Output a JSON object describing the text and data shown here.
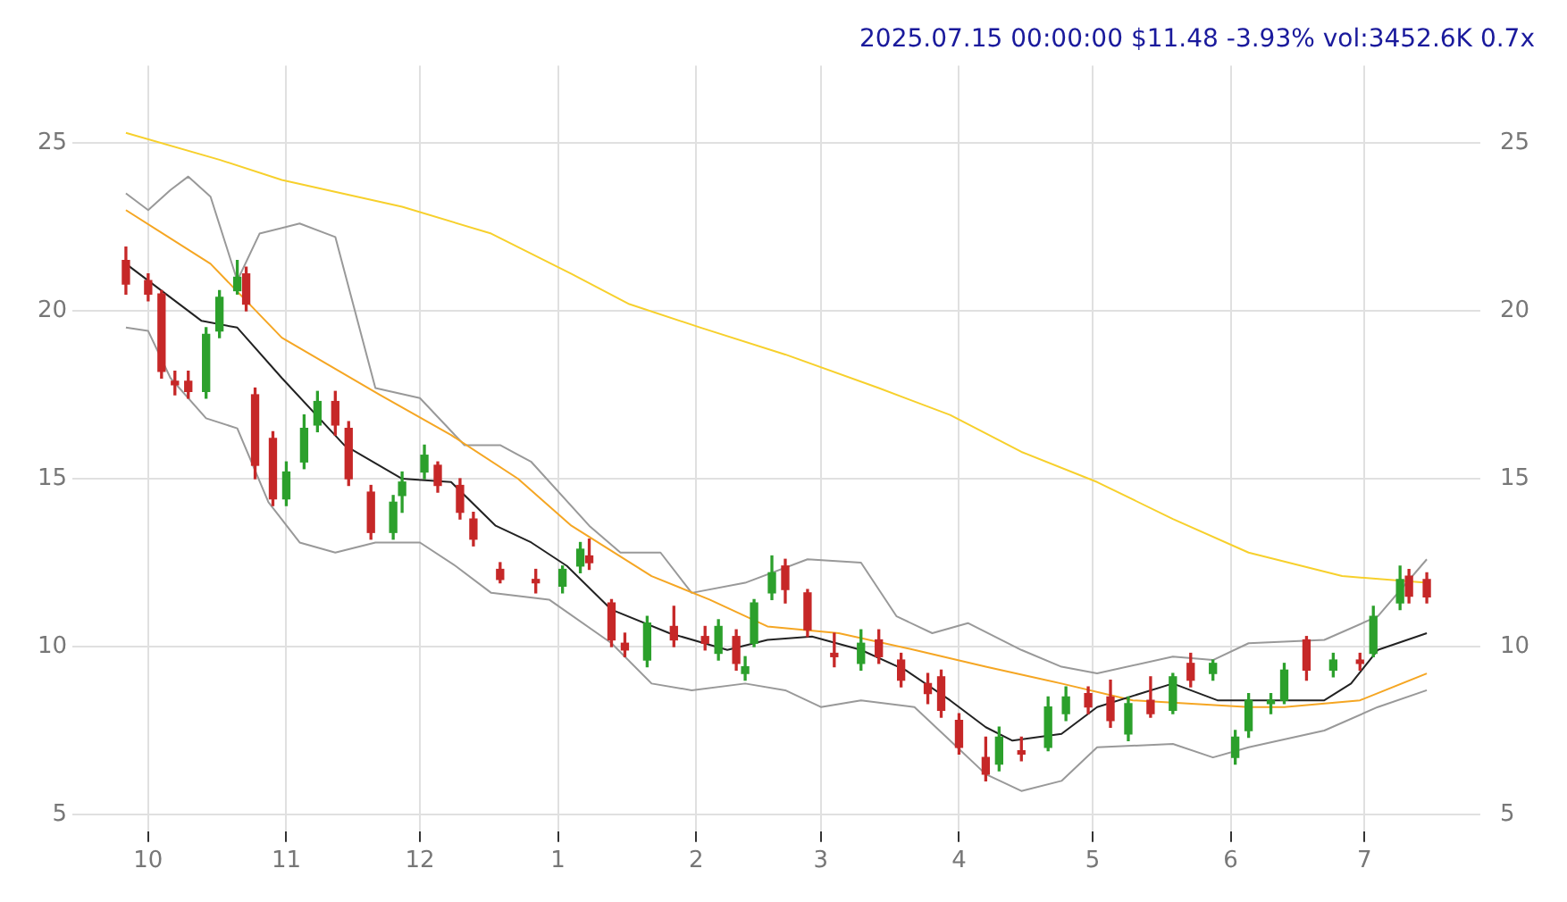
{
  "chart_data": {
    "type": "candlestick",
    "title": "2025.07.15 00:00:00 $11.48 -3.93% vol:3452.6K 0.7x",
    "x": [
      "2024-09-26",
      "2024-10-01",
      "2024-10-04",
      "2024-10-07",
      "2024-10-10",
      "2024-10-14",
      "2024-10-17",
      "2024-10-21",
      "2024-10-23",
      "2024-10-25",
      "2024-10-29",
      "2024-11-01",
      "2024-11-05",
      "2024-11-08",
      "2024-11-12",
      "2024-11-15",
      "2024-11-20",
      "2024-11-25",
      "2024-11-27",
      "2024-12-02",
      "2024-12-05",
      "2024-12-10",
      "2024-12-13",
      "2024-12-19",
      "2024-12-27",
      "2025-01-02",
      "2025-01-06",
      "2025-01-08",
      "2025-01-13",
      "2025-01-16",
      "2025-01-21",
      "2025-01-27",
      "2025-02-03",
      "2025-02-06",
      "2025-02-10",
      "2025-02-12",
      "2025-02-14",
      "2025-02-18",
      "2025-02-21",
      "2025-02-26",
      "2025-03-04",
      "2025-03-10",
      "2025-03-14",
      "2025-03-19",
      "2025-03-25",
      "2025-03-28",
      "2025-04-01",
      "2025-04-07",
      "2025-04-10",
      "2025-04-15",
      "2025-04-21",
      "2025-04-25",
      "2025-04-30",
      "2025-05-05",
      "2025-05-09",
      "2025-05-14",
      "2025-05-19",
      "2025-05-23",
      "2025-05-28",
      "2025-06-02",
      "2025-06-05",
      "2025-06-10",
      "2025-06-13",
      "2025-06-18",
      "2025-06-24",
      "2025-06-30",
      "2025-07-03",
      "2025-07-09",
      "2025-07-11",
      "2025-07-15"
    ],
    "ohlc": [
      [
        21.5,
        21.9,
        20.5,
        20.8
      ],
      [
        20.9,
        21.1,
        20.3,
        20.5
      ],
      [
        20.5,
        20.6,
        18.0,
        18.2
      ],
      [
        17.9,
        18.2,
        17.5,
        17.8
      ],
      [
        17.9,
        18.2,
        17.4,
        17.6
      ],
      [
        17.6,
        19.5,
        17.4,
        19.3
      ],
      [
        19.4,
        20.6,
        19.2,
        20.4
      ],
      [
        20.6,
        21.5,
        20.5,
        21.0
      ],
      [
        21.1,
        21.3,
        20.0,
        20.2
      ],
      [
        17.5,
        17.7,
        15.0,
        15.4
      ],
      [
        16.2,
        16.4,
        14.2,
        14.4
      ],
      [
        14.4,
        15.5,
        14.2,
        15.2
      ],
      [
        15.5,
        16.9,
        15.3,
        16.5
      ],
      [
        16.6,
        17.6,
        16.4,
        17.3
      ],
      [
        17.3,
        17.6,
        16.3,
        16.6
      ],
      [
        16.5,
        16.7,
        14.8,
        15.0
      ],
      [
        14.6,
        14.8,
        13.2,
        13.4
      ],
      [
        13.4,
        14.5,
        13.2,
        14.3
      ],
      [
        14.5,
        15.2,
        14.0,
        14.9
      ],
      [
        15.2,
        16.0,
        15.0,
        15.7
      ],
      [
        15.4,
        15.5,
        14.6,
        14.8
      ],
      [
        14.8,
        15.0,
        13.8,
        14.0
      ],
      [
        13.8,
        14.0,
        13.0,
        13.2
      ],
      [
        12.3,
        12.5,
        11.9,
        12.0
      ],
      [
        12.0,
        12.3,
        11.6,
        11.9
      ],
      [
        11.8,
        12.4,
        11.6,
        12.3
      ],
      [
        12.4,
        13.1,
        12.2,
        12.9
      ],
      [
        12.7,
        13.2,
        12.3,
        12.5
      ],
      [
        11.3,
        11.4,
        10.0,
        10.2
      ],
      [
        10.1,
        10.4,
        9.7,
        9.9
      ],
      [
        9.6,
        10.9,
        9.4,
        10.7
      ],
      [
        10.6,
        11.2,
        10.0,
        10.2
      ],
      [
        10.3,
        10.6,
        9.9,
        10.1
      ],
      [
        9.8,
        10.8,
        9.6,
        10.6
      ],
      [
        10.3,
        10.5,
        9.3,
        9.5
      ],
      [
        9.2,
        9.7,
        9.0,
        9.4
      ],
      [
        10.1,
        11.4,
        10.0,
        11.3
      ],
      [
        11.6,
        12.7,
        11.4,
        12.2
      ],
      [
        12.4,
        12.6,
        11.3,
        11.7
      ],
      [
        11.6,
        11.7,
        10.3,
        10.5
      ],
      [
        9.8,
        10.4,
        9.4,
        9.7
      ],
      [
        9.5,
        10.5,
        9.3,
        10.1
      ],
      [
        10.2,
        10.5,
        9.5,
        9.7
      ],
      [
        9.6,
        9.8,
        8.8,
        9.0
      ],
      [
        8.9,
        9.2,
        8.3,
        8.6
      ],
      [
        9.1,
        9.3,
        7.9,
        8.1
      ],
      [
        7.8,
        8.0,
        6.8,
        7.0
      ],
      [
        6.7,
        7.3,
        6.0,
        6.2
      ],
      [
        6.5,
        7.6,
        6.3,
        7.3
      ],
      [
        6.9,
        7.3,
        6.6,
        6.8
      ],
      [
        7.0,
        8.5,
        6.9,
        8.2
      ],
      [
        8.0,
        8.8,
        7.8,
        8.5
      ],
      [
        8.6,
        8.8,
        8.0,
        8.2
      ],
      [
        8.5,
        9.0,
        7.6,
        7.8
      ],
      [
        7.4,
        8.5,
        7.2,
        8.3
      ],
      [
        8.4,
        9.1,
        7.9,
        8.0
      ],
      [
        8.1,
        9.2,
        8.0,
        9.1
      ],
      [
        9.5,
        9.8,
        8.8,
        9.0
      ],
      [
        9.2,
        9.6,
        9.0,
        9.5
      ],
      [
        6.7,
        7.5,
        6.5,
        7.3
      ],
      [
        7.5,
        8.6,
        7.3,
        8.4
      ],
      [
        8.3,
        8.6,
        8.0,
        8.4
      ],
      [
        8.4,
        9.5,
        8.3,
        9.3
      ],
      [
        10.2,
        10.3,
        9.0,
        9.3
      ],
      [
        9.3,
        9.8,
        9.1,
        9.6
      ],
      [
        9.6,
        9.8,
        9.3,
        9.5
      ],
      [
        9.8,
        11.2,
        9.7,
        10.9
      ],
      [
        11.3,
        12.4,
        11.1,
        12.0
      ],
      [
        12.1,
        12.3,
        11.3,
        11.5
      ],
      [
        12.0,
        12.2,
        11.3,
        11.48
      ]
    ],
    "series": [
      {
        "type": "line",
        "color": "#222222",
        "x": [
          "2024-09-26",
          "2024-10-13",
          "2024-10-21",
          "2024-10-31",
          "2024-11-14",
          "2024-11-27",
          "2024-12-08",
          "2024-12-18",
          "2024-12-26",
          "2025-01-03",
          "2025-01-13",
          "2025-01-26",
          "2025-02-08",
          "2025-02-17",
          "2025-02-27",
          "2025-03-10",
          "2025-03-20",
          "2025-03-30",
          "2025-04-07",
          "2025-04-13",
          "2025-04-24",
          "2025-05-02",
          "2025-05-19",
          "2025-05-29",
          "2025-06-09",
          "2025-06-22",
          "2025-06-28",
          "2025-07-04",
          "2025-07-15"
        ],
        "values": [
          21.4,
          19.7,
          19.5,
          18.0,
          16.0,
          15.0,
          14.9,
          13.6,
          13.1,
          12.4,
          11.1,
          10.4,
          9.9,
          10.2,
          10.3,
          9.9,
          9.3,
          8.4,
          7.6,
          7.2,
          7.4,
          8.2,
          8.9,
          8.4,
          8.4,
          8.4,
          8.9,
          9.9,
          10.4
        ]
      },
      {
        "type": "line",
        "color": "#f5a623",
        "x": [
          "2024-09-26",
          "2024-10-15",
          "2024-10-31",
          "2024-11-22",
          "2024-12-08",
          "2024-12-23",
          "2025-01-04",
          "2025-01-22",
          "2025-02-04",
          "2025-02-17",
          "2025-03-05",
          "2025-03-22",
          "2025-04-07",
          "2025-04-24",
          "2025-05-10",
          "2025-06-05",
          "2025-06-13",
          "2025-06-30",
          "2025-07-15"
        ],
        "values": [
          23.0,
          21.4,
          19.2,
          17.5,
          16.3,
          15.0,
          13.6,
          12.1,
          11.4,
          10.6,
          10.4,
          9.9,
          9.4,
          8.9,
          8.4,
          8.2,
          8.2,
          8.4,
          9.2
        ]
      },
      {
        "type": "line",
        "color": "#f7d02c",
        "x": [
          "2024-09-26",
          "2024-10-17",
          "2024-10-31",
          "2024-11-27",
          "2024-12-17",
          "2025-01-04",
          "2025-01-17",
          "2025-02-02",
          "2025-02-21",
          "2025-03-14",
          "2025-03-30",
          "2025-04-15",
          "2025-05-02",
          "2025-05-19",
          "2025-06-05",
          "2025-06-26",
          "2025-07-15"
        ],
        "values": [
          25.3,
          24.5,
          23.9,
          23.1,
          22.3,
          21.1,
          20.2,
          19.5,
          18.7,
          17.7,
          16.9,
          15.8,
          14.9,
          13.8,
          12.8,
          12.1,
          11.9
        ]
      },
      {
        "type": "line",
        "color": "#999999",
        "x": [
          "2024-09-26",
          "2024-10-01",
          "2024-10-06",
          "2024-10-10",
          "2024-10-15",
          "2024-10-21",
          "2024-10-26",
          "2024-11-04",
          "2024-11-12",
          "2024-11-21",
          "2024-12-01",
          "2024-12-11",
          "2024-12-19",
          "2024-12-26",
          "2025-01-08",
          "2025-01-15",
          "2025-01-24",
          "2025-01-31",
          "2025-02-12",
          "2025-02-26",
          "2025-03-10",
          "2025-03-18",
          "2025-03-26",
          "2025-04-03",
          "2025-04-15",
          "2025-04-24",
          "2025-05-02",
          "2025-05-19",
          "2025-05-28",
          "2025-06-05",
          "2025-06-22",
          "2025-07-04",
          "2025-07-15"
        ],
        "values": [
          23.5,
          23.0,
          23.6,
          24.0,
          23.4,
          20.9,
          22.3,
          22.6,
          22.2,
          17.7,
          17.4,
          16.0,
          16.0,
          15.5,
          13.6,
          12.8,
          12.8,
          11.6,
          11.9,
          12.6,
          12.5,
          10.9,
          10.4,
          10.7,
          9.9,
          9.4,
          9.2,
          9.7,
          9.6,
          10.1,
          10.2,
          10.9,
          12.6
        ]
      },
      {
        "type": "line",
        "color": "#999999",
        "x": [
          "2024-09-26",
          "2024-10-01",
          "2024-10-06",
          "2024-10-14",
          "2024-10-21",
          "2024-10-28",
          "2024-11-04",
          "2024-11-12",
          "2024-11-21",
          "2024-12-01",
          "2024-12-09",
          "2024-12-17",
          "2024-12-30",
          "2025-01-13",
          "2025-01-22",
          "2025-01-31",
          "2025-02-12",
          "2025-02-21",
          "2025-03-01",
          "2025-03-10",
          "2025-03-22",
          "2025-03-30",
          "2025-04-07",
          "2025-04-15",
          "2025-04-24",
          "2025-05-02",
          "2025-05-19",
          "2025-05-28",
          "2025-06-05",
          "2025-06-22",
          "2025-07-04",
          "2025-07-15"
        ],
        "values": [
          19.5,
          19.4,
          18.0,
          16.8,
          16.5,
          14.3,
          13.1,
          12.8,
          13.1,
          13.1,
          12.4,
          11.6,
          11.4,
          10.1,
          8.9,
          8.7,
          8.9,
          8.7,
          8.2,
          8.4,
          8.2,
          7.2,
          6.2,
          5.7,
          6.0,
          7.0,
          7.1,
          6.7,
          7.0,
          7.5,
          8.2,
          8.7
        ]
      }
    ],
    "xlim": [
      "2024-09-14",
      "2025-07-27"
    ],
    "xticks": [
      {
        "value": "2024-10-01",
        "label": "10"
      },
      {
        "value": "2024-11-01",
        "label": "11"
      },
      {
        "value": "2024-12-01",
        "label": "12"
      },
      {
        "value": "2025-01-01",
        "label": "1"
      },
      {
        "value": "2025-02-01",
        "label": "2"
      },
      {
        "value": "2025-03-01",
        "label": "3"
      },
      {
        "value": "2025-04-01",
        "label": "4"
      },
      {
        "value": "2025-05-01",
        "label": "5"
      },
      {
        "value": "2025-06-01",
        "label": "6"
      },
      {
        "value": "2025-07-01",
        "label": "7"
      }
    ],
    "ylim": [
      4.5,
      27.3
    ],
    "yticks": [
      5,
      10,
      15,
      20,
      25
    ],
    "y2lim": [
      4.5,
      27.3
    ],
    "y2ticks": [
      5,
      10,
      15,
      20,
      25
    ],
    "grid": true
  }
}
